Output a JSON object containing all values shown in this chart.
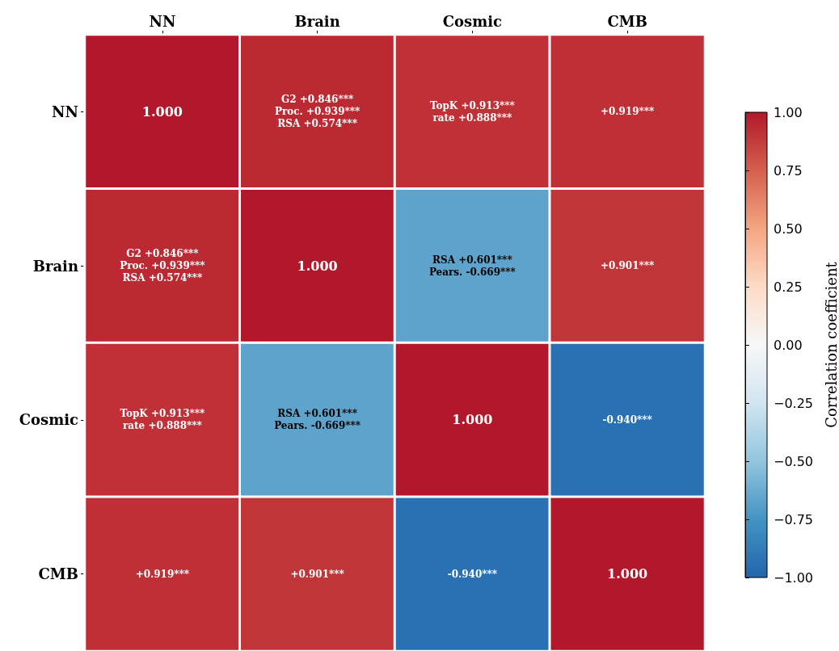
{
  "chart_data": {
    "type": "heatmap",
    "categories": [
      "NN",
      "Brain",
      "Cosmic",
      "CMB"
    ],
    "y_categories": [
      "NN",
      "Brain",
      "Cosmic",
      "CMB"
    ],
    "cells": [
      [
        1.0,
        0.939,
        0.913,
        0.919
      ],
      [
        0.939,
        1.0,
        -0.669,
        0.901
      ],
      [
        0.913,
        -0.669,
        1.0,
        -0.94
      ],
      [
        0.919,
        0.901,
        -0.94,
        1.0
      ]
    ],
    "cell_labels": [
      [
        "1.000",
        "G2 +0.846***\nProc. +0.939***\nRSA +0.574***",
        "TopK +0.913***\nrate +0.888***",
        "+0.919***"
      ],
      [
        "G2 +0.846***\nProc. +0.939***\nRSA +0.574***",
        "1.000",
        "RSA +0.601***\nPears. -0.669***",
        "+0.901***"
      ],
      [
        "TopK +0.913***\nrate +0.888***",
        "RSA +0.601***\nPears. -0.669***",
        "1.000",
        "-0.940***"
      ],
      [
        "+0.919***",
        "+0.901***",
        "-0.940***",
        "1.000"
      ]
    ],
    "clim": [
      -1,
      1
    ],
    "cticks": [
      {
        "value": -1,
        "label": "−1.00"
      },
      {
        "value": -0.75,
        "label": "−0.75"
      },
      {
        "value": -0.5,
        "label": "−0.50"
      },
      {
        "value": -0.25,
        "label": "−0.25"
      },
      {
        "value": 0,
        "label": "0.00"
      },
      {
        "value": 0.25,
        "label": "0.25"
      },
      {
        "value": 0.5,
        "label": "0.50"
      },
      {
        "value": 0.75,
        "label": "0.75"
      },
      {
        "value": 1,
        "label": "1.00"
      }
    ],
    "clabel": "Correlation coefficient"
  }
}
